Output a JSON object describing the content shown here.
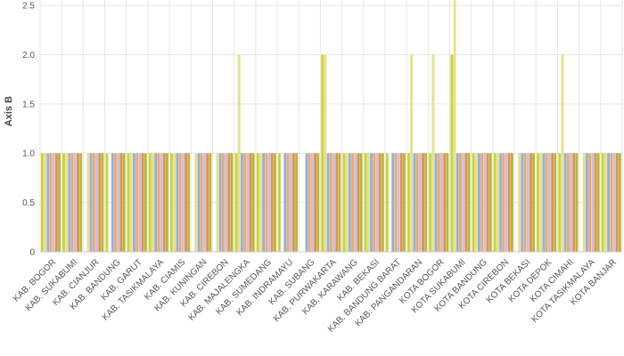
{
  "chart_data": {
    "type": "bar",
    "ylabel": "Axis B",
    "xlabel": "",
    "title": "",
    "ylim": [
      0,
      2.6
    ],
    "yticks": [
      "0",
      "0.5",
      "1.0",
      "1.5",
      "2.0",
      "2.5"
    ],
    "grid": true,
    "categories": [
      "KAB. BOGOR",
      "KAB. SUKABUMI",
      "KAB. CIANJUR",
      "KAB. BANDUNG",
      "KAB. GARUT",
      "KAB. TASIKMALAYA",
      "KAB. CIAMIS",
      "KAB. KUNINGAN",
      "KAB. CIREBON",
      "KAB. MAJALENGKA",
      "KAB. SUMEDANG",
      "KAB. INDRAMAYU",
      "KAB. SUBANG",
      "KAB. PURWAKARTA",
      "KAB. KARAWANG",
      "KAB. BEKASI",
      "KAB. BANDUNG BARAT",
      "KAB. PANGANDARAN",
      "KOTA BOGOR",
      "KOTA SUKABUMI",
      "KOTA BANDUNG",
      "KOTA CIREBON",
      "KOTA BEKASI",
      "KOTA DEPOK",
      "KOTA CIMAHI",
      "KOTA TASIKMALAYA",
      "KOTA BANJAR"
    ],
    "series": [
      {
        "color": "#c9d33a",
        "values": [
          1,
          1,
          0,
          1,
          1,
          1,
          1,
          0,
          0,
          1,
          1,
          1,
          0,
          2,
          1,
          1,
          1,
          1,
          1,
          2,
          1,
          1,
          0,
          1,
          1,
          0,
          1
        ]
      },
      {
        "color": "#e8e08a",
        "values": [
          1,
          1,
          1,
          0,
          1,
          1,
          1,
          1,
          1,
          2,
          1,
          0,
          0,
          2,
          1,
          1,
          0,
          2,
          2,
          2.7,
          1,
          1,
          1,
          1,
          2,
          1,
          1
        ]
      },
      {
        "color": "#8fb2dc",
        "values": [
          1,
          1,
          1,
          1,
          1,
          1,
          1,
          1,
          1,
          1,
          1,
          1,
          1,
          1,
          1,
          1,
          1,
          1,
          1,
          1,
          1,
          1,
          1,
          1,
          1,
          1,
          1
        ]
      },
      {
        "color": "#f0a868",
        "values": [
          1,
          1,
          1,
          1,
          1,
          1,
          1,
          1,
          1,
          1,
          1,
          1,
          1,
          1,
          1,
          1,
          1,
          1,
          1,
          1,
          1,
          1,
          1,
          1,
          1,
          1,
          1
        ]
      },
      {
        "color": "#c8bfe0",
        "values": [
          1,
          1,
          1,
          1,
          1,
          1,
          1,
          1,
          1,
          1,
          1,
          1,
          1,
          1,
          1,
          1,
          1,
          1,
          1,
          1,
          1,
          1,
          1,
          1,
          1,
          1,
          1
        ]
      },
      {
        "color": "#e2914e",
        "values": [
          1,
          1,
          1,
          1,
          1,
          1,
          1,
          1,
          1,
          1,
          1,
          1,
          1,
          1,
          1,
          1,
          1,
          1,
          1,
          1,
          1,
          1,
          1,
          1,
          1,
          1,
          1
        ]
      },
      {
        "color": "#b5b83a",
        "values": [
          1,
          1,
          1,
          1,
          1,
          1,
          1,
          1,
          1,
          1,
          1,
          1,
          1,
          1,
          1,
          1,
          1,
          1,
          1,
          1,
          1,
          1,
          1,
          1,
          1,
          1,
          1
        ]
      }
    ]
  }
}
